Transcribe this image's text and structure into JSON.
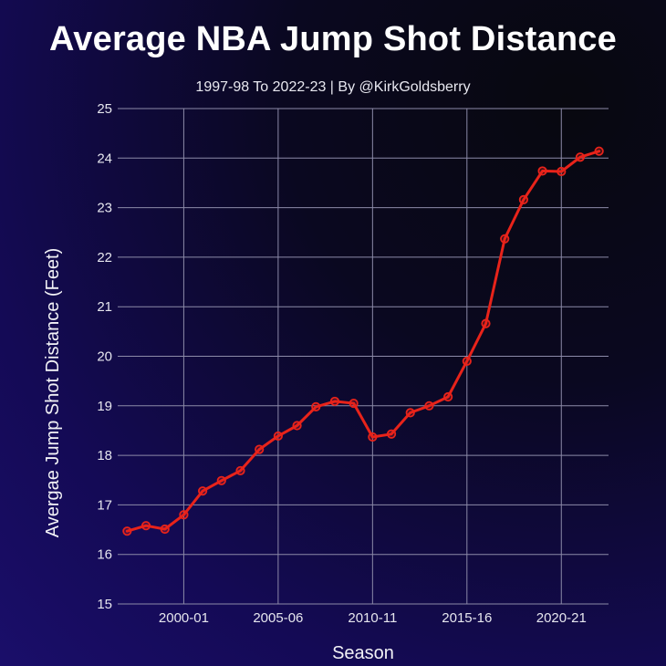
{
  "header": {
    "title": "Average NBA Jump Shot Distance",
    "subtitle": "1997-98 To 2022-23 | By @KirkGoldsberry"
  },
  "colors": {
    "line": "#e8231a",
    "grid": "#8c8aa8",
    "text": "#ffffff"
  },
  "chart_data": {
    "type": "line",
    "title": "Average NBA Jump Shot Distance",
    "subtitle": "1997-98 To 2022-23 | By @KirkGoldsberry",
    "xlabel": "Season",
    "ylabel": "Avergae Jump Shot Distance (Feet)",
    "ylim": [
      15,
      25
    ],
    "yticks": [
      15,
      16,
      17,
      18,
      19,
      20,
      21,
      22,
      23,
      24,
      25
    ],
    "xlim": [
      -0.5,
      25.5
    ],
    "xticks": [
      {
        "index": 3,
        "label": "2000-01"
      },
      {
        "index": 8,
        "label": "2005-06"
      },
      {
        "index": 13,
        "label": "2010-11"
      },
      {
        "index": 18,
        "label": "2015-16"
      },
      {
        "index": 23,
        "label": "2020-21"
      }
    ],
    "grid": true,
    "series": [
      {
        "name": "Average Jump Shot Distance",
        "x": [
          "1997-98",
          "1998-99",
          "1999-00",
          "2000-01",
          "2001-02",
          "2002-03",
          "2003-04",
          "2004-05",
          "2005-06",
          "2006-07",
          "2007-08",
          "2008-09",
          "2009-10",
          "2010-11",
          "2011-12",
          "2012-13",
          "2013-14",
          "2014-15",
          "2015-16",
          "2016-17",
          "2017-18",
          "2018-19",
          "2019-20",
          "2020-21",
          "2021-22",
          "2022-23"
        ],
        "values": [
          16.47,
          16.58,
          16.51,
          16.8,
          17.28,
          17.49,
          17.69,
          18.12,
          18.39,
          18.6,
          18.98,
          19.09,
          19.05,
          18.37,
          18.43,
          18.86,
          19.0,
          19.18,
          19.9,
          20.66,
          22.37,
          23.16,
          23.74,
          23.73,
          24.02,
          24.14
        ]
      }
    ]
  }
}
